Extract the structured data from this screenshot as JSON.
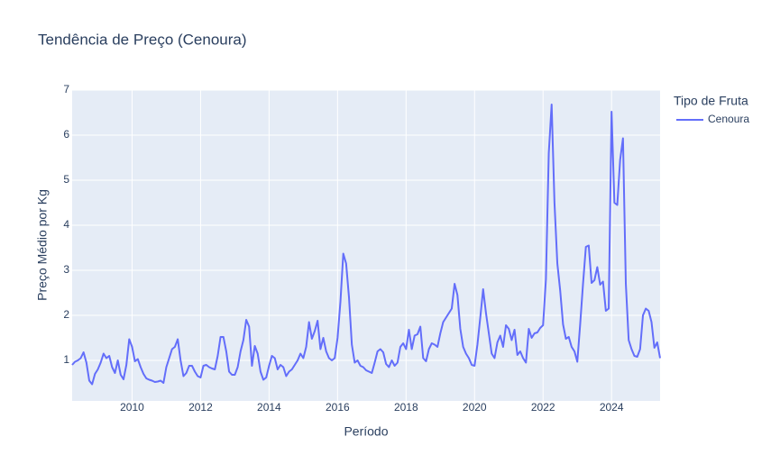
{
  "chart_data": {
    "type": "line",
    "title": "Tendência de Preço (Cenoura)",
    "x_label": "Período",
    "y_label": "Preço Médio por Kg",
    "legend_title": "Tipo de Fruta",
    "legend_position": "right",
    "grid": true,
    "x": [
      "2008-04",
      "2008-05",
      "2008-06",
      "2008-07",
      "2008-08",
      "2008-09",
      "2008-10",
      "2008-11",
      "2008-12",
      "2009-01",
      "2009-02",
      "2009-03",
      "2009-04",
      "2009-05",
      "2009-06",
      "2009-07",
      "2009-08",
      "2009-09",
      "2009-10",
      "2009-11",
      "2009-12",
      "2010-01",
      "2010-02",
      "2010-03",
      "2010-04",
      "2010-05",
      "2010-06",
      "2010-07",
      "2010-08",
      "2010-09",
      "2010-10",
      "2010-11",
      "2010-12",
      "2011-01",
      "2011-02",
      "2011-03",
      "2011-04",
      "2011-05",
      "2011-06",
      "2011-07",
      "2011-08",
      "2011-09",
      "2011-10",
      "2011-11",
      "2011-12",
      "2012-01",
      "2012-02",
      "2012-03",
      "2012-04",
      "2012-05",
      "2012-06",
      "2012-07",
      "2012-08",
      "2012-09",
      "2012-10",
      "2012-11",
      "2012-12",
      "2013-01",
      "2013-02",
      "2013-03",
      "2013-04",
      "2013-05",
      "2013-06",
      "2013-07",
      "2013-08",
      "2013-09",
      "2013-10",
      "2013-11",
      "2013-12",
      "2014-01",
      "2014-02",
      "2014-03",
      "2014-04",
      "2014-05",
      "2014-06",
      "2014-07",
      "2014-08",
      "2014-09",
      "2014-10",
      "2014-11",
      "2014-12",
      "2015-01",
      "2015-02",
      "2015-03",
      "2015-04",
      "2015-05",
      "2015-06",
      "2015-07",
      "2015-08",
      "2015-09",
      "2015-10",
      "2015-11",
      "2015-12",
      "2016-01",
      "2016-02",
      "2016-03",
      "2016-04",
      "2016-05",
      "2016-06",
      "2016-07",
      "2016-08",
      "2016-09",
      "2016-10",
      "2016-11",
      "2016-12",
      "2017-01",
      "2017-02",
      "2017-03",
      "2017-04",
      "2017-05",
      "2017-06",
      "2017-07",
      "2017-08",
      "2017-09",
      "2017-10",
      "2017-11",
      "2017-12",
      "2018-01",
      "2018-02",
      "2018-03",
      "2018-04",
      "2018-05",
      "2018-06",
      "2018-07",
      "2018-08",
      "2018-09",
      "2018-10",
      "2018-11",
      "2018-12",
      "2019-01",
      "2019-02",
      "2019-03",
      "2019-04",
      "2019-05",
      "2019-06",
      "2019-07",
      "2019-08",
      "2019-09",
      "2019-10",
      "2019-11",
      "2019-12",
      "2020-01",
      "2020-02",
      "2020-03",
      "2020-04",
      "2020-05",
      "2020-06",
      "2020-07",
      "2020-08",
      "2020-09",
      "2020-10",
      "2020-11",
      "2020-12",
      "2021-01",
      "2021-02",
      "2021-03",
      "2021-04",
      "2021-05",
      "2021-06",
      "2021-07",
      "2021-08",
      "2021-09",
      "2021-10",
      "2021-11",
      "2021-12",
      "2022-01",
      "2022-02",
      "2022-03",
      "2022-04",
      "2022-05",
      "2022-06",
      "2022-07",
      "2022-08",
      "2022-09",
      "2022-10",
      "2022-11",
      "2022-12",
      "2023-01",
      "2023-02",
      "2023-03",
      "2023-04",
      "2023-05",
      "2023-06",
      "2023-07",
      "2023-08",
      "2023-09",
      "2023-10",
      "2023-11",
      "2023-12",
      "2024-01",
      "2024-02",
      "2024-03",
      "2024-04",
      "2024-05",
      "2024-06",
      "2024-07",
      "2024-08",
      "2024-09",
      "2024-10",
      "2024-11",
      "2024-12",
      "2025-01",
      "2025-02",
      "2025-03",
      "2025-04",
      "2025-05",
      "2025-06"
    ],
    "series": [
      {
        "name": "Cenoura",
        "color": "#636efa",
        "values": [
          0.9,
          0.97,
          1.0,
          1.05,
          1.18,
          0.95,
          0.55,
          0.47,
          0.7,
          0.8,
          0.95,
          1.15,
          1.05,
          1.1,
          0.85,
          0.72,
          1.0,
          0.68,
          0.58,
          0.9,
          1.47,
          1.3,
          0.98,
          1.03,
          0.85,
          0.7,
          0.6,
          0.57,
          0.55,
          0.52,
          0.53,
          0.55,
          0.5,
          0.85,
          1.05,
          1.25,
          1.3,
          1.47,
          1.0,
          0.65,
          0.72,
          0.88,
          0.88,
          0.75,
          0.65,
          0.62,
          0.88,
          0.9,
          0.85,
          0.82,
          0.8,
          1.1,
          1.52,
          1.52,
          1.2,
          0.75,
          0.68,
          0.68,
          0.85,
          1.2,
          1.45,
          1.9,
          1.75,
          0.88,
          1.32,
          1.15,
          0.75,
          0.57,
          0.62,
          0.88,
          1.1,
          1.05,
          0.8,
          0.9,
          0.85,
          0.65,
          0.75,
          0.8,
          0.9,
          1.0,
          1.15,
          1.05,
          1.3,
          1.85,
          1.48,
          1.65,
          1.88,
          1.25,
          1.5,
          1.2,
          1.05,
          1.0,
          1.05,
          1.5,
          2.3,
          3.37,
          3.15,
          2.4,
          1.35,
          0.95,
          1.0,
          0.88,
          0.85,
          0.78,
          0.75,
          0.72,
          0.95,
          1.2,
          1.25,
          1.18,
          0.92,
          0.85,
          1.0,
          0.88,
          0.95,
          1.3,
          1.38,
          1.25,
          1.68,
          1.25,
          1.55,
          1.58,
          1.75,
          1.05,
          0.98,
          1.25,
          1.38,
          1.35,
          1.3,
          1.6,
          1.85,
          1.95,
          2.05,
          2.15,
          2.7,
          2.45,
          1.7,
          1.3,
          1.15,
          1.05,
          0.9,
          0.88,
          1.35,
          1.95,
          2.58,
          2.05,
          1.6,
          1.15,
          1.05,
          1.4,
          1.55,
          1.3,
          1.78,
          1.7,
          1.45,
          1.68,
          1.12,
          1.2,
          1.05,
          0.95,
          1.7,
          1.5,
          1.6,
          1.62,
          1.72,
          1.78,
          2.8,
          5.6,
          6.68,
          4.5,
          3.15,
          2.55,
          1.8,
          1.48,
          1.52,
          1.3,
          1.2,
          0.97,
          1.8,
          2.7,
          3.52,
          3.55,
          2.72,
          2.78,
          3.07,
          2.68,
          2.75,
          2.1,
          2.15,
          6.52,
          4.5,
          4.45,
          5.45,
          5.93,
          2.7,
          1.45,
          1.25,
          1.1,
          1.08,
          1.25,
          2.0,
          2.15,
          2.1,
          1.85,
          1.28,
          1.4,
          1.05
        ]
      }
    ],
    "xlim": [
      "2008-04",
      "2025-06"
    ],
    "xticks": [
      2010,
      2012,
      2014,
      2016,
      2018,
      2020,
      2022,
      2024
    ],
    "ylim": [
      0.1,
      7
    ],
    "yticks": [
      1,
      2,
      3,
      4,
      5,
      6,
      7
    ]
  }
}
